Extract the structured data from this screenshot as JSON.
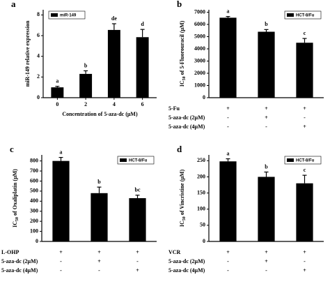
{
  "chart_data": [
    {
      "type": "bar",
      "panel": "a",
      "categories": [
        "0",
        "2",
        "4",
        "6"
      ],
      "values": [
        1.0,
        2.3,
        6.55,
        5.85
      ],
      "errors": [
        0.1,
        0.3,
        0.6,
        0.75
      ],
      "letters": [
        "a",
        "b",
        "de",
        "d"
      ],
      "color": "#000000",
      "ylim": [
        0,
        8.5
      ],
      "yticks": [
        0,
        2,
        4,
        6,
        8
      ],
      "ylabel": [
        "miR-149 relative expression"
      ],
      "xlabel": "Concentration of 5-aza-dc (μM)",
      "legend_label": "miR-149",
      "legend": "upper left"
    },
    {
      "type": "bar",
      "panel": "b",
      "values": [
        6550,
        5400,
        4500
      ],
      "errors": [
        100,
        180,
        350
      ],
      "letters": [
        "a",
        "b",
        "c"
      ],
      "color": "#000000",
      "ylim": [
        0,
        7200
      ],
      "yticks": [
        0,
        1000,
        2000,
        3000,
        4000,
        5000,
        6000,
        7000
      ],
      "ylabel": [
        "IC",
        "50",
        " of 5-Fluorouracil (μM)"
      ],
      "legend_label": "HCT-8/Fu",
      "legend": "upper right",
      "treatments": [
        {
          "label": "5-Fu",
          "marks": [
            "+",
            "+",
            "+"
          ]
        },
        {
          "label": "5-aza-dc (2μM)",
          "marks": [
            "-",
            "+",
            "-"
          ]
        },
        {
          "label": "5-aza-dc (4μM)",
          "marks": [
            "-",
            "-",
            "+"
          ]
        }
      ]
    },
    {
      "type": "bar",
      "panel": "c",
      "values": [
        800,
        480,
        430
      ],
      "errors": [
        35,
        60,
        30
      ],
      "letters": [
        "a",
        "b",
        "bc"
      ],
      "color": "#000000",
      "ylim": [
        0,
        860
      ],
      "yticks": [
        0,
        100,
        200,
        300,
        400,
        500,
        600,
        700,
        800
      ],
      "ylabel": [
        "IC",
        "50",
        " of Oxaliplatin (μM)"
      ],
      "legend_label": "HCT-8/Fu",
      "legend": "upper right",
      "treatments": [
        {
          "label": "L-OHP",
          "marks": [
            "+",
            "+",
            "+"
          ]
        },
        {
          "label": "5-aza-dc (2μM)",
          "marks": [
            "-",
            "+",
            "-"
          ]
        },
        {
          "label": "5-aza-dc (4μM)",
          "marks": [
            "-",
            "-",
            "+"
          ]
        }
      ]
    },
    {
      "type": "bar",
      "panel": "d",
      "values": [
        248,
        200,
        180
      ],
      "errors": [
        8,
        15,
        25
      ],
      "letters": [
        "a",
        "b",
        "c"
      ],
      "color": "#000000",
      "ylim": [
        0,
        268
      ],
      "yticks": [
        0,
        50,
        100,
        150,
        200,
        250
      ],
      "ylabel": [
        "IC",
        "50",
        " of Vincristine (μM)"
      ],
      "legend_label": "HCT-8/Fu",
      "legend": "upper right",
      "treatments": [
        {
          "label": "VCR",
          "marks": [
            "+",
            "+",
            "+"
          ]
        },
        {
          "label": "5-aza-dc (2μM)",
          "marks": [
            "-",
            "+",
            "-"
          ]
        },
        {
          "label": "5-aza-dc (4μM)",
          "marks": [
            "-",
            "-",
            "+"
          ]
        }
      ]
    }
  ]
}
